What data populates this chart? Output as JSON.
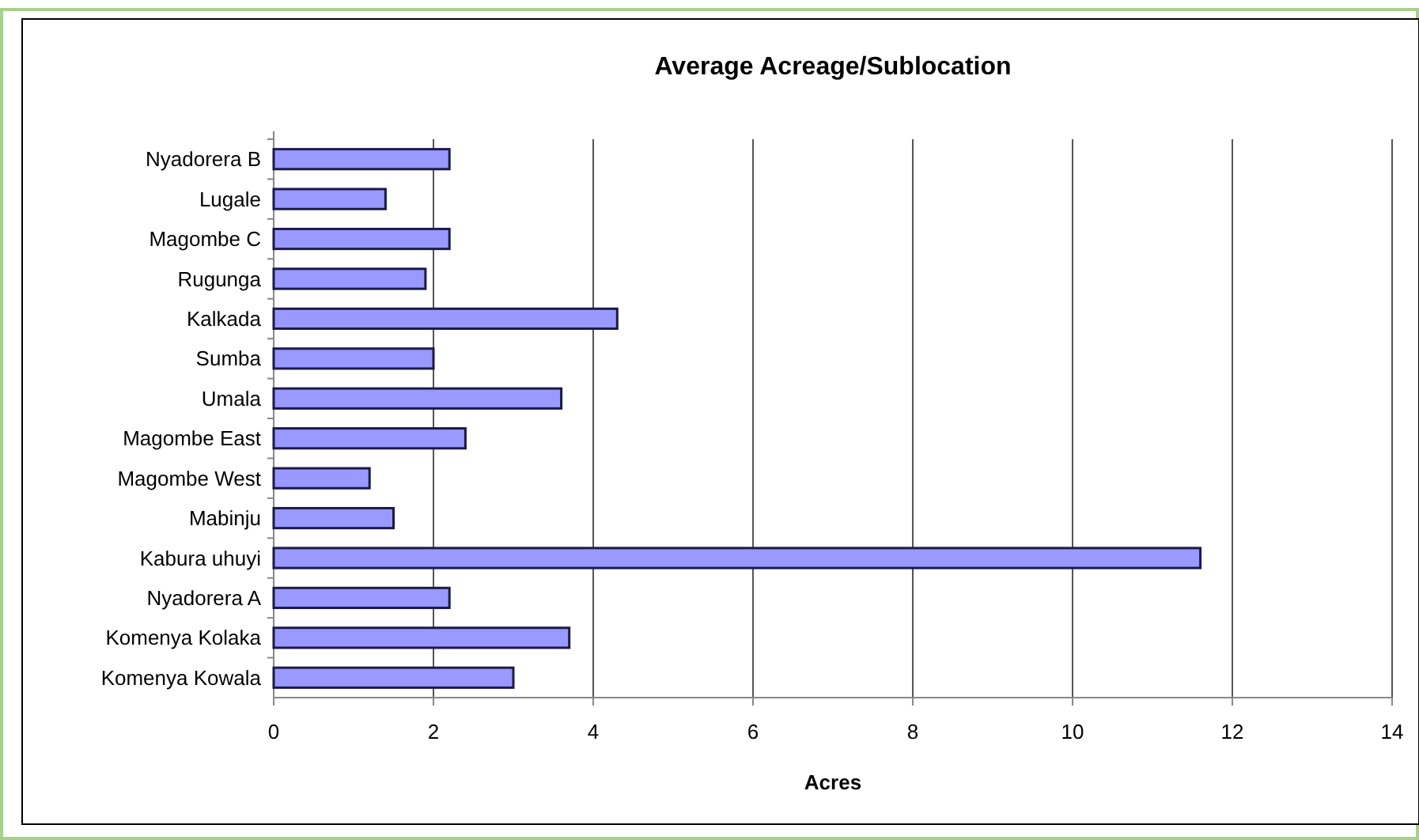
{
  "chart_data": {
    "type": "bar",
    "orientation": "horizontal",
    "title": "Average Acreage/Sublocation",
    "xlabel": "Acres",
    "categories": [
      "Nyadorera B",
      "Lugale",
      "Magombe C",
      "Rugunga",
      "Kalkada",
      "Sumba",
      "Umala",
      "Magombe East",
      "Magombe West",
      "Mabinju",
      "Kabura uhuyi",
      "Nyadorera A",
      "Komenya Kolaka",
      "Komenya Kowala"
    ],
    "values": [
      2.2,
      1.4,
      2.2,
      1.9,
      4.3,
      2.0,
      3.6,
      2.4,
      1.2,
      1.5,
      11.6,
      2.2,
      3.7,
      3.0
    ],
    "color": "#9999ff",
    "xlim": [
      0,
      14
    ],
    "xticks": [
      0,
      2,
      4,
      6,
      8,
      10,
      12,
      14
    ],
    "grid": "x"
  }
}
